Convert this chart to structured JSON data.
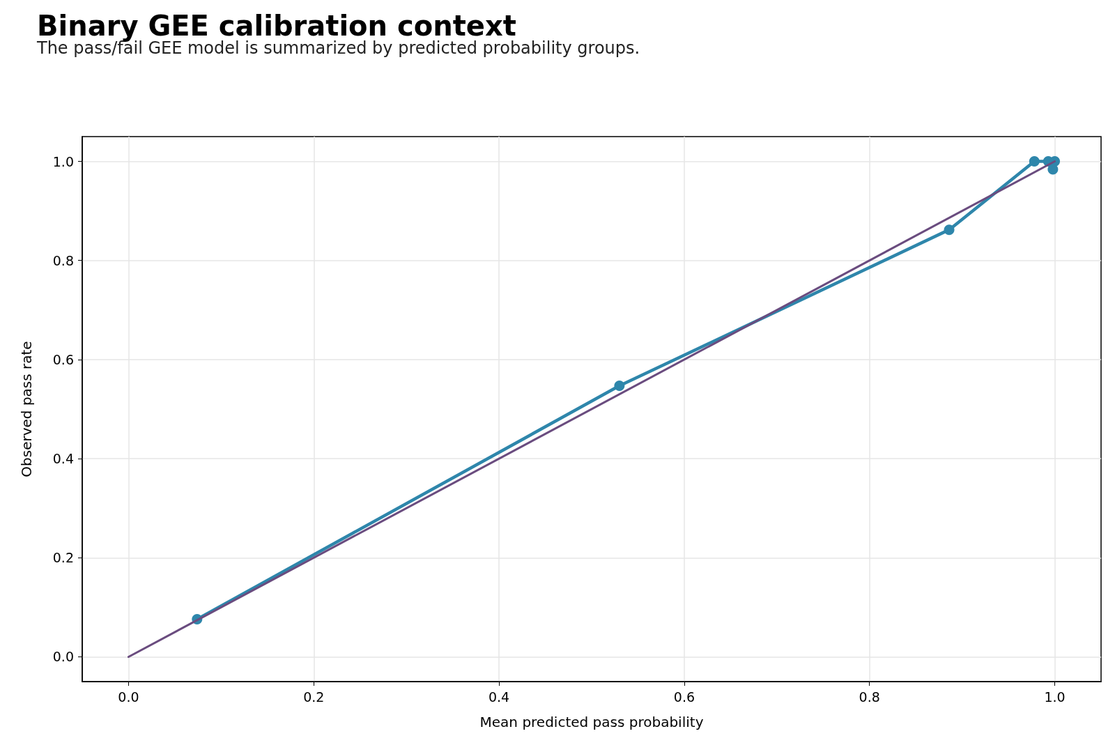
{
  "chart_data": {
    "type": "line",
    "title": "Binary GEE calibration context",
    "subtitle": "The pass/fail GEE model is summarized by predicted probability groups.",
    "xlabel": "Mean predicted pass probability",
    "ylabel": "Observed pass rate",
    "series": [
      {
        "color": "#2e86ab",
        "marker": "circle",
        "x": [
          0.074,
          0.53,
          0.886,
          0.978,
          0.993,
          0.998,
          1.0
        ],
        "values": [
          0.076,
          0.547,
          0.862,
          1.0,
          1.0,
          0.984,
          1.0
        ]
      },
      {
        "color": "#6a4c7f",
        "marker": "none",
        "x": [
          0,
          1
        ],
        "values": [
          0,
          1
        ]
      }
    ],
    "xlim": [
      -0.05,
      1.05
    ],
    "ylim": [
      -0.05,
      1.05
    ],
    "xticks": [
      {
        "value": 0,
        "label": "0.0"
      },
      0.2,
      0.4,
      0.6,
      0.8,
      {
        "value": 1,
        "label": "1.0"
      }
    ],
    "yticks": [
      {
        "value": 0,
        "label": "0.0"
      },
      0.2,
      0.4,
      0.6,
      0.8,
      {
        "value": 1,
        "label": "1.0"
      }
    ],
    "grid": true
  }
}
